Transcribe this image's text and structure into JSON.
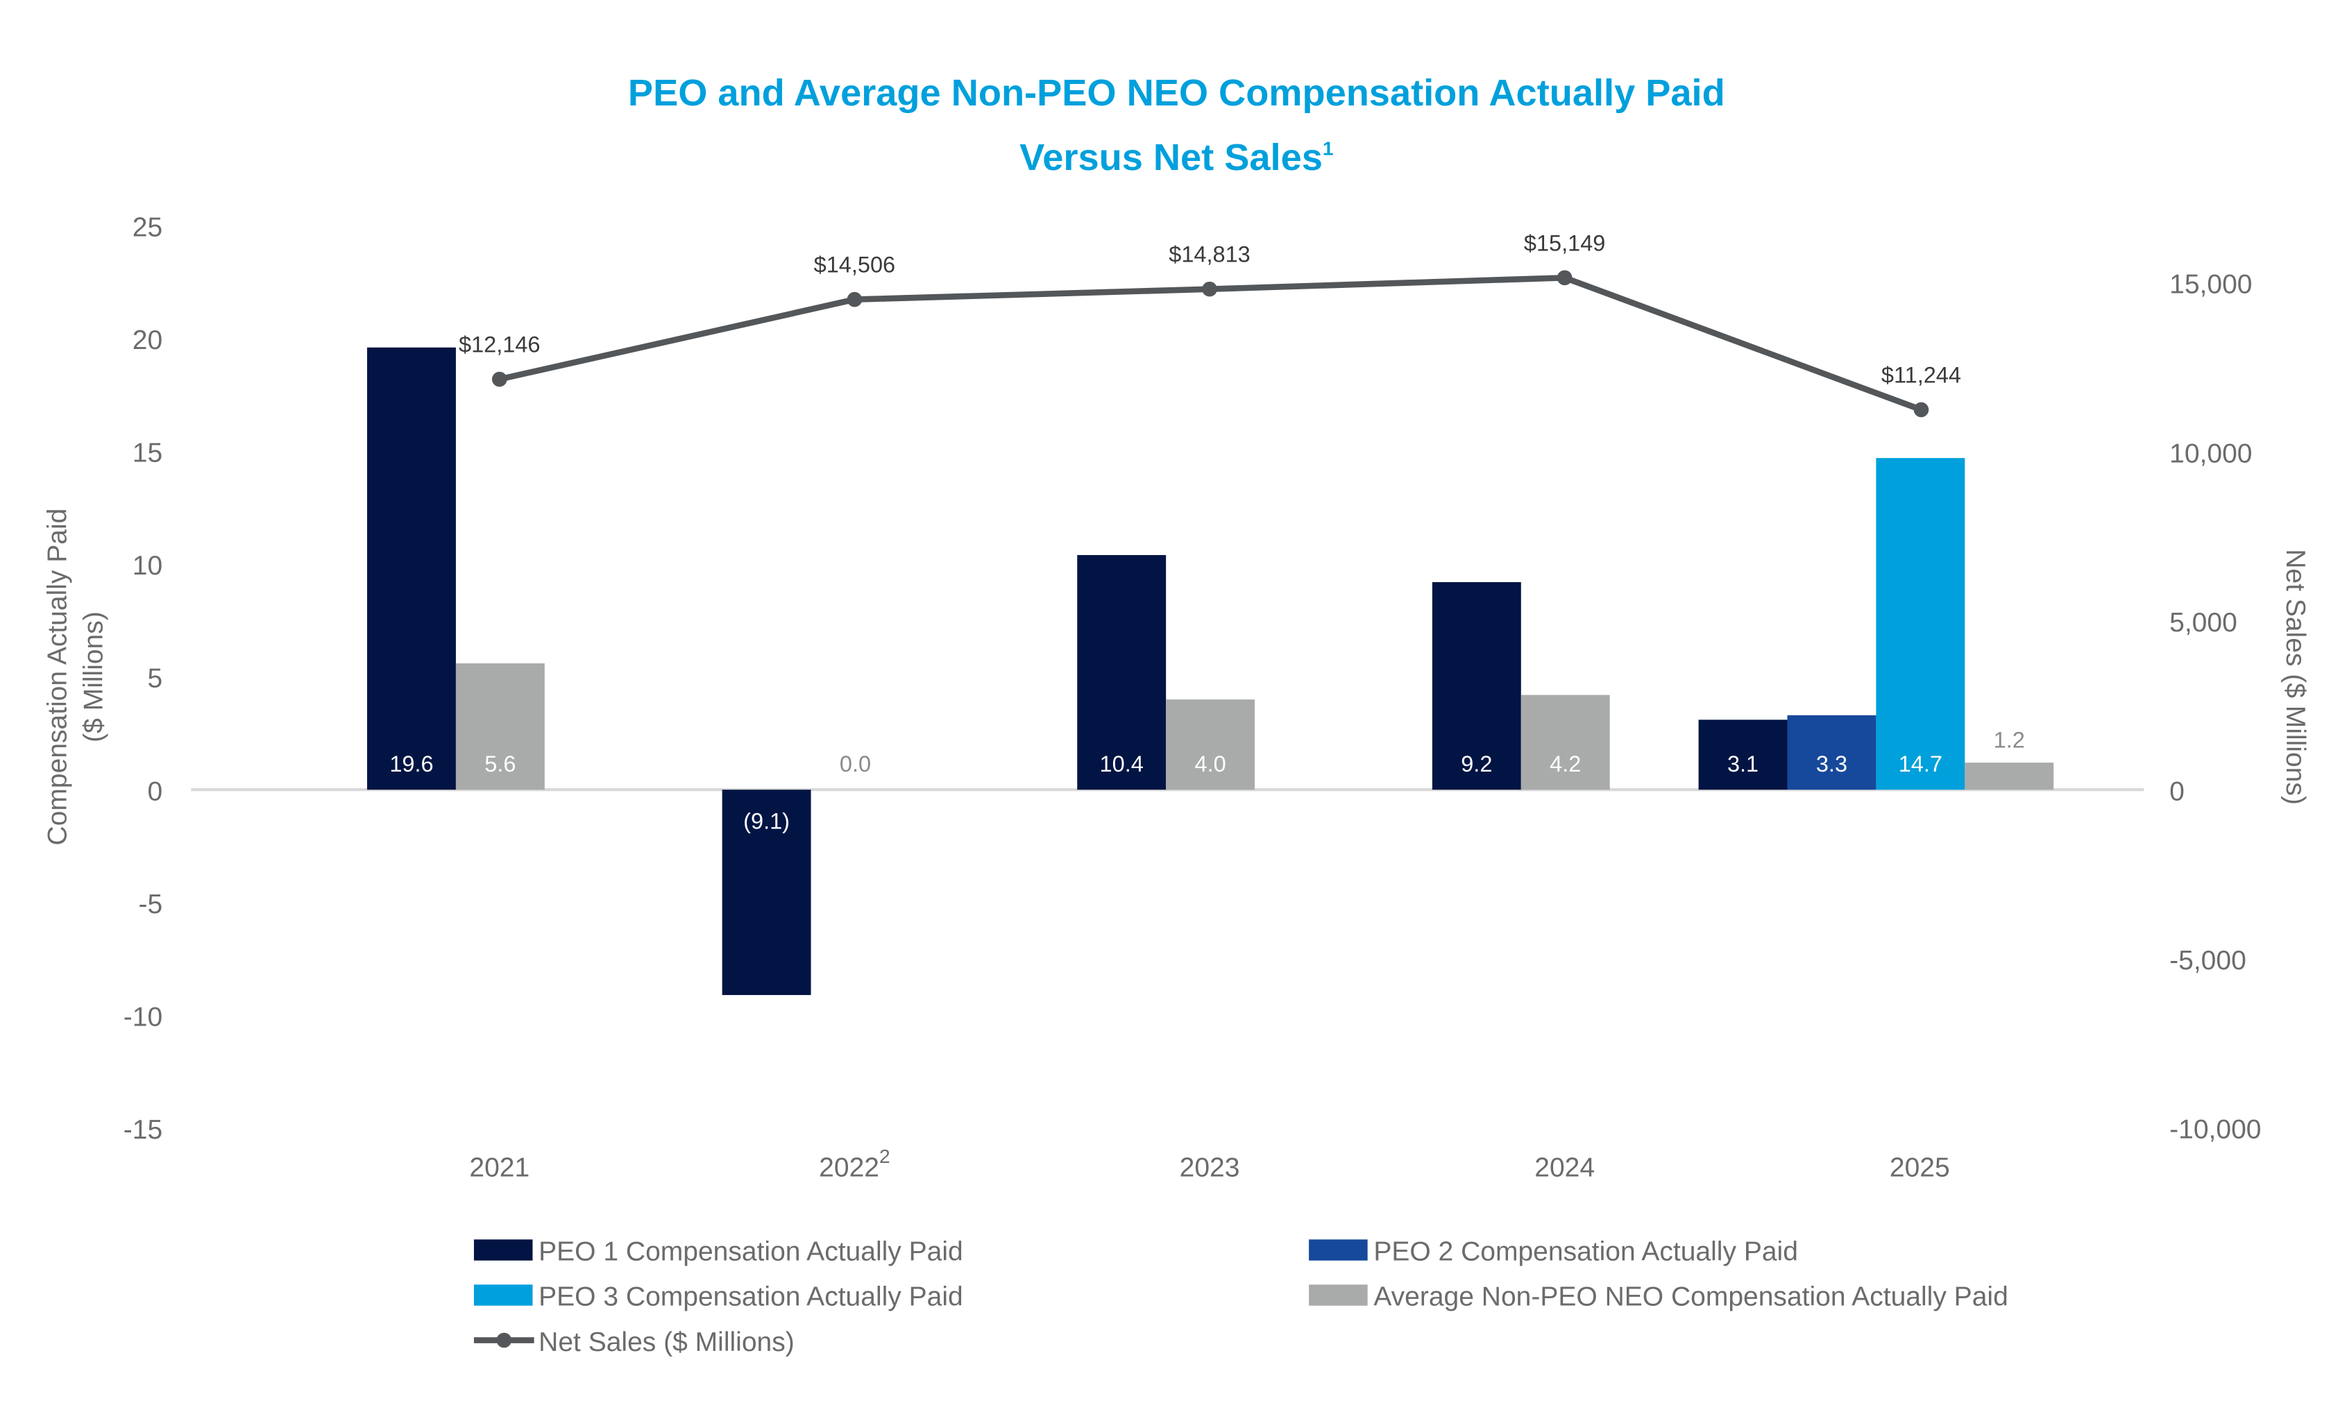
{
  "chart_data": {
    "type": "bar",
    "title": "PEO and Average Non-PEO NEO Compensation Actually Paid",
    "subtitle": "Versus Net Sales",
    "subtitle_footnote": "1",
    "categories": [
      "2021",
      "2022",
      "2023",
      "2024",
      "2025"
    ],
    "category_footnotes": [
      "",
      "2",
      "",
      "",
      ""
    ],
    "ylabel": "Compensation Actually Paid",
    "ylabel_line2": "($ Millions)",
    "y2label": "Net Sales ($ Millions)",
    "ylim": [
      -15,
      25
    ],
    "yticks": [
      "25",
      "20",
      "15",
      "10",
      "5",
      "0",
      "-5",
      "-10",
      "-15"
    ],
    "y2lim": [
      -10000,
      15000
    ],
    "y2ticks": [
      "15,000",
      "10,000",
      "5,000",
      "0",
      "-5,000",
      "-10,000"
    ],
    "grid": false,
    "legend_placement": "bottom",
    "series": [
      {
        "name": "PEO 1 Compensation Actually Paid",
        "type": "bar",
        "color": "#021443",
        "values": [
          19.6,
          -9.1,
          10.4,
          9.2,
          3.1
        ],
        "labels": [
          "19.6",
          "(9.1)",
          "10.4",
          "9.2",
          "3.1"
        ]
      },
      {
        "name": "PEO 2 Compensation Actually Paid",
        "type": "bar",
        "color": "#16499b",
        "values": [
          null,
          null,
          null,
          null,
          3.3
        ],
        "labels": [
          "",
          "",
          "",
          "",
          "3.3"
        ]
      },
      {
        "name": "PEO 3 Compensation Actually Paid",
        "type": "bar",
        "color": "#00a0dc",
        "values": [
          null,
          null,
          null,
          null,
          14.7
        ],
        "labels": [
          "",
          "",
          "",
          "",
          "14.7"
        ]
      },
      {
        "name": "Average Non-PEO NEO Compensation Actually Paid",
        "type": "bar",
        "color": "#a9aaaa",
        "values": [
          5.6,
          0.0,
          4.0,
          4.2,
          1.2
        ],
        "labels": [
          "5.6",
          "0.0",
          "4.0",
          "4.2",
          "1.2"
        ]
      },
      {
        "name": "Net Sales ($ Millions)",
        "type": "line",
        "axis": "right",
        "color": "#54575a",
        "values": [
          12146,
          14506,
          14813,
          15149,
          11244
        ],
        "labels": [
          "$12,146",
          "$14,506",
          "$14,813",
          "$15,149",
          "$11,244"
        ]
      }
    ]
  }
}
